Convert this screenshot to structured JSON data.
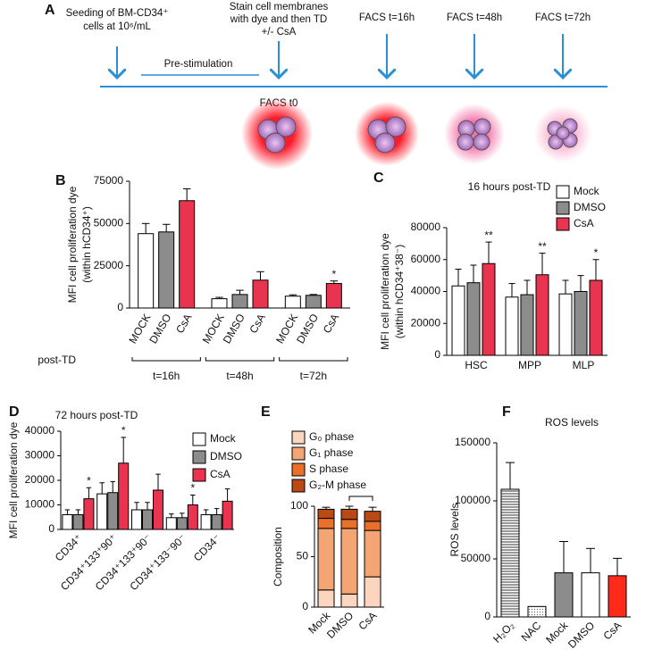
{
  "timeline": {
    "panel": "A",
    "steps": [
      {
        "lines": [
          "Seeding of BM-CD34⁺",
          "cells at 10⁶/mL"
        ]
      },
      {
        "lines": [
          "Stain cell membranes",
          "with dye and then TD",
          "+/- CsA"
        ]
      },
      {
        "lines": [
          "FACS t=16h"
        ]
      },
      {
        "lines": [
          "FACS t=48h"
        ]
      },
      {
        "lines": [
          "FACS t=72h"
        ]
      }
    ],
    "phase": "Pre-stimulation",
    "baseline": "FACS t0"
  },
  "chart_data": [
    {
      "panel": "B",
      "type": "bar",
      "y_label": [
        "MFI cell proliferation dye",
        "(within hCD34⁺)"
      ],
      "x_label": "post-TD",
      "categories": [
        "t=16h",
        "t=48h",
        "t=72h"
      ],
      "series": [
        {
          "name": "MOCK",
          "color": "#ffffff",
          "values": [
            44000,
            5500,
            7000
          ],
          "errors": [
            6000,
            800,
            800
          ]
        },
        {
          "name": "DMSO",
          "color": "#8c8c8c",
          "values": [
            45000,
            8000,
            7500
          ],
          "errors": [
            4500,
            2500,
            500
          ]
        },
        {
          "name": "CsA",
          "color": "#e8344e",
          "values": [
            63500,
            16500,
            14500
          ],
          "errors": [
            7000,
            5000,
            1500
          ],
          "significance": [
            null,
            null,
            "*"
          ]
        }
      ],
      "ylim": [
        0,
        75000
      ],
      "yticks": [
        0,
        25000,
        50000,
        75000
      ]
    },
    {
      "panel": "C",
      "type": "bar",
      "title": "16 hours post-TD",
      "y_label": [
        "MFI cell proliferation dye",
        "(within hCD34⁺38⁻)"
      ],
      "categories": [
        "HSC",
        "MPP",
        "MLP"
      ],
      "legend": "upper right",
      "series": [
        {
          "name": "Mock",
          "color": "#ffffff",
          "values": [
            43500,
            36500,
            38500
          ],
          "errors": [
            10500,
            8500,
            8500
          ]
        },
        {
          "name": "DMSO",
          "color": "#8c8c8c",
          "values": [
            45500,
            38000,
            40000
          ],
          "errors": [
            11000,
            9000,
            10000
          ]
        },
        {
          "name": "CsA",
          "color": "#e8344e",
          "values": [
            57500,
            50500,
            47000
          ],
          "errors": [
            13500,
            13500,
            13000
          ],
          "significance": [
            "**",
            "**",
            "*"
          ]
        }
      ],
      "ylim": [
        0,
        80000
      ],
      "yticks": [
        0,
        20000,
        40000,
        60000,
        80000
      ]
    },
    {
      "panel": "D",
      "type": "bar",
      "title": "72 hours post-TD",
      "y_label": [
        "MFI cell proliferation dye"
      ],
      "categories": [
        "CD34⁺",
        "CD34⁺133⁺90⁺",
        "CD34⁺133⁺90⁻",
        "CD34⁺133⁻90⁻",
        "CD34⁻"
      ],
      "legend": "upper right",
      "series": [
        {
          "name": "Mock",
          "color": "#ffffff",
          "values": [
            6000,
            14500,
            8000,
            4800,
            6000
          ],
          "errors": [
            2000,
            4500,
            3000,
            1500,
            2000
          ]
        },
        {
          "name": "DMSO",
          "color": "#8c8c8c",
          "values": [
            6000,
            15000,
            8000,
            4800,
            6000
          ],
          "errors": [
            2000,
            4500,
            3000,
            1800,
            2500
          ]
        },
        {
          "name": "CsA",
          "color": "#e8344e",
          "values": [
            12500,
            27000,
            16000,
            10000,
            11500
          ],
          "errors": [
            4500,
            10500,
            6500,
            4000,
            5000
          ],
          "significance": [
            "*",
            "*",
            null,
            "*",
            null
          ]
        }
      ],
      "ylim": [
        0,
        40000
      ],
      "yticks": [
        0,
        10000,
        20000,
        30000,
        40000
      ]
    },
    {
      "panel": "E",
      "type": "bar",
      "stacked": true,
      "y_label": [
        "Composition"
      ],
      "categories": [
        "Mock",
        "DMSO",
        "CsA"
      ],
      "legend": "upper left",
      "series": [
        {
          "name": "G₀ phase",
          "color": "#fbd5bd",
          "values": [
            17,
            13,
            30
          ],
          "errors": [
            1,
            5,
            16
          ],
          "significance": [
            null,
            null,
            "*"
          ]
        },
        {
          "name": "G₁ phase",
          "color": "#f4a574",
          "values": [
            61,
            65,
            46
          ],
          "errors": [
            2,
            3,
            6
          ]
        },
        {
          "name": "S phase",
          "color": "#e8702a",
          "values": [
            10,
            9,
            9
          ],
          "errors": [
            3,
            4,
            4
          ]
        },
        {
          "name": "G₂-M phase",
          "color": "#b94a16",
          "values": [
            9,
            10,
            10
          ],
          "errors": [
            2,
            3,
            4
          ]
        }
      ],
      "ylim": [
        0,
        100
      ],
      "yticks": [
        0,
        50,
        100
      ]
    },
    {
      "panel": "F",
      "type": "bar",
      "title": "ROS levels",
      "y_label": [
        "ROS levels"
      ],
      "categories": [
        "H₂O₂",
        "NAC",
        "Mock",
        "DMSO",
        "CsA"
      ],
      "values": [
        110000,
        9000,
        38000,
        38000,
        35500
      ],
      "errors": [
        23000,
        0,
        27000,
        21000,
        15000
      ],
      "colors": [
        "#ffffff",
        "#ffffff",
        "#8c8c8c",
        "#ffffff",
        "#ff2a1a"
      ],
      "patterns": [
        "horizontal-lines",
        "dots",
        null,
        null,
        null
      ],
      "ylim": [
        0,
        150000
      ],
      "yticks": [
        0,
        50000,
        100000,
        150000
      ]
    }
  ]
}
